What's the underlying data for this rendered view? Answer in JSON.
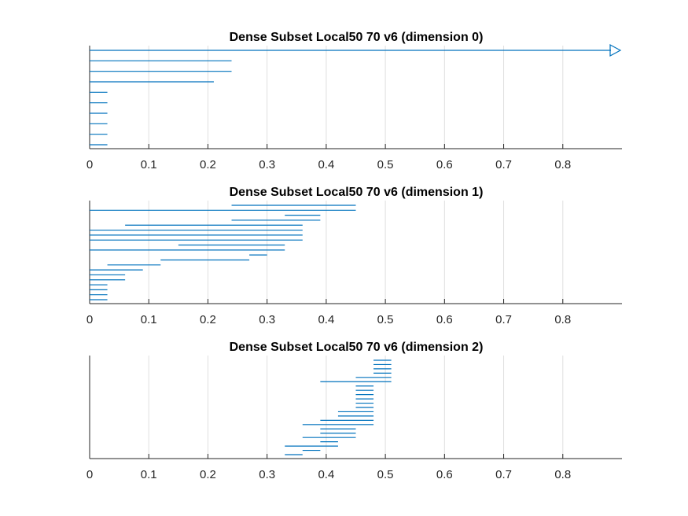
{
  "style": {
    "bar_color": "#0072BD",
    "grid_color": "#DFDFDF",
    "axis_color": "#262626"
  },
  "chart_data": [
    {
      "type": "barcode",
      "title": "Dense Subset Local50 70 v6 (dimension 0)",
      "xlabel": "",
      "ylabel": "",
      "xlim": [
        0,
        0.9
      ],
      "xticks": [
        "0",
        "0.1",
        "0.2",
        "0.3",
        "0.4",
        "0.5",
        "0.6",
        "0.7",
        "0.8"
      ],
      "grid": true,
      "infinite_marker": "triangle-right",
      "intervals": [
        {
          "birth": 0,
          "death": "Inf"
        },
        {
          "birth": 0,
          "death": 0.24
        },
        {
          "birth": 0,
          "death": 0.24
        },
        {
          "birth": 0,
          "death": 0.21
        },
        {
          "birth": 0,
          "death": 0.03
        },
        {
          "birth": 0,
          "death": 0.03
        },
        {
          "birth": 0,
          "death": 0.03
        },
        {
          "birth": 0,
          "death": 0.03
        },
        {
          "birth": 0,
          "death": 0.03
        },
        {
          "birth": 0,
          "death": 0.03
        }
      ]
    },
    {
      "type": "barcode",
      "title": "Dense Subset Local50 70 v6 (dimension 1)",
      "xlabel": "",
      "ylabel": "",
      "xlim": [
        0,
        0.9
      ],
      "xticks": [
        "0",
        "0.1",
        "0.2",
        "0.3",
        "0.4",
        "0.5",
        "0.6",
        "0.7",
        "0.8"
      ],
      "grid": true,
      "intervals": [
        {
          "birth": 0.24,
          "death": 0.45
        },
        {
          "birth": 0,
          "death": 0.45
        },
        {
          "birth": 0.33,
          "death": 0.39
        },
        {
          "birth": 0.24,
          "death": 0.39
        },
        {
          "birth": 0.06,
          "death": 0.36
        },
        {
          "birth": 0,
          "death": 0.36
        },
        {
          "birth": 0,
          "death": 0.36
        },
        {
          "birth": 0,
          "death": 0.36
        },
        {
          "birth": 0.15,
          "death": 0.33
        },
        {
          "birth": 0,
          "death": 0.33
        },
        {
          "birth": 0.27,
          "death": 0.3
        },
        {
          "birth": 0.12,
          "death": 0.27
        },
        {
          "birth": 0.03,
          "death": 0.12
        },
        {
          "birth": 0,
          "death": 0.09
        },
        {
          "birth": 0,
          "death": 0.06
        },
        {
          "birth": 0,
          "death": 0.06
        },
        {
          "birth": 0,
          "death": 0.03
        },
        {
          "birth": 0,
          "death": 0.03
        },
        {
          "birth": 0,
          "death": 0.03
        },
        {
          "birth": 0,
          "death": 0.03
        }
      ]
    },
    {
      "type": "barcode",
      "title": "Dense Subset Local50 70 v6 (dimension 2)",
      "xlabel": "",
      "ylabel": "",
      "xlim": [
        0,
        0.9
      ],
      "xticks": [
        "0",
        "0.1",
        "0.2",
        "0.3",
        "0.4",
        "0.5",
        "0.6",
        "0.7",
        "0.8"
      ],
      "grid": true,
      "intervals": [
        {
          "birth": 0.48,
          "death": 0.51
        },
        {
          "birth": 0.48,
          "death": 0.51
        },
        {
          "birth": 0.48,
          "death": 0.51
        },
        {
          "birth": 0.48,
          "death": 0.51
        },
        {
          "birth": 0.45,
          "death": 0.51
        },
        {
          "birth": 0.39,
          "death": 0.51
        },
        {
          "birth": 0.45,
          "death": 0.48
        },
        {
          "birth": 0.45,
          "death": 0.48
        },
        {
          "birth": 0.45,
          "death": 0.48
        },
        {
          "birth": 0.45,
          "death": 0.48
        },
        {
          "birth": 0.45,
          "death": 0.48
        },
        {
          "birth": 0.45,
          "death": 0.48
        },
        {
          "birth": 0.42,
          "death": 0.48
        },
        {
          "birth": 0.42,
          "death": 0.48
        },
        {
          "birth": 0.39,
          "death": 0.48
        },
        {
          "birth": 0.36,
          "death": 0.48
        },
        {
          "birth": 0.39,
          "death": 0.45
        },
        {
          "birth": 0.39,
          "death": 0.45
        },
        {
          "birth": 0.36,
          "death": 0.45
        },
        {
          "birth": 0.39,
          "death": 0.42
        },
        {
          "birth": 0.33,
          "death": 0.42
        },
        {
          "birth": 0.36,
          "death": 0.39
        },
        {
          "birth": 0.33,
          "death": 0.36
        }
      ]
    }
  ]
}
